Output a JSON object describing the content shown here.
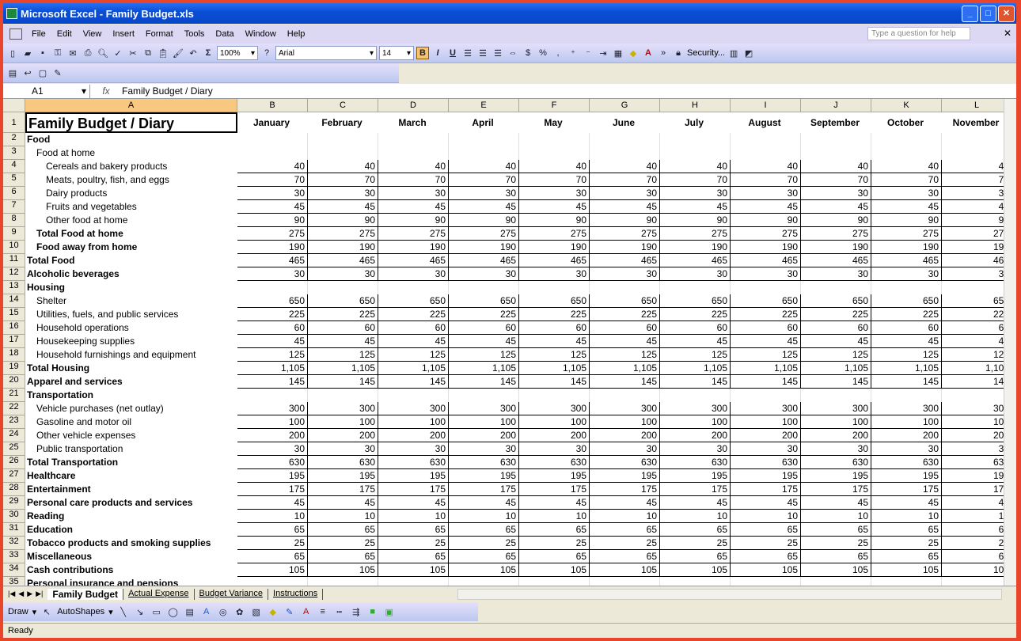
{
  "window": {
    "title": "Microsoft Excel - Family Budget.xls"
  },
  "menu": [
    "File",
    "Edit",
    "View",
    "Insert",
    "Format",
    "Tools",
    "Data",
    "Window",
    "Help"
  ],
  "ask_placeholder": "Type a question for help",
  "toolbar": {
    "zoom": "100%",
    "font": "Arial",
    "size": "14",
    "bold": "B",
    "italic": "I",
    "underline": "U",
    "security": "Security..."
  },
  "formula_bar": {
    "name_box": "A1",
    "fx": "fx",
    "content": "Family Budget / Diary"
  },
  "columns": [
    "A",
    "B",
    "C",
    "D",
    "E",
    "F",
    "G",
    "H",
    "I",
    "J",
    "K",
    "L"
  ],
  "title": "Family Budget / Diary",
  "months": [
    "January",
    "February",
    "March",
    "April",
    "May",
    "June",
    "July",
    "August",
    "September",
    "October",
    "November"
  ],
  "rows": [
    {
      "n": 2,
      "label": "Food",
      "bold": true,
      "indent": 0
    },
    {
      "n": 3,
      "label": "Food at home",
      "indent": 1
    },
    {
      "n": 4,
      "label": "Cereals and bakery products",
      "indent": 2,
      "v": "40"
    },
    {
      "n": 5,
      "label": "Meats, poultry, fish, and eggs",
      "indent": 2,
      "v": "70"
    },
    {
      "n": 6,
      "label": "Dairy products",
      "indent": 2,
      "v": "30"
    },
    {
      "n": 7,
      "label": "Fruits and vegetables",
      "indent": 2,
      "v": "45"
    },
    {
      "n": 8,
      "label": "Other food at home",
      "indent": 2,
      "v": "90"
    },
    {
      "n": 9,
      "label": "Total Food at home",
      "bold": true,
      "indent": 1,
      "v": "275"
    },
    {
      "n": 10,
      "label": "Food away from home",
      "bold": true,
      "indent": 1,
      "v": "190"
    },
    {
      "n": 11,
      "label": "Total Food",
      "bold": true,
      "indent": 0,
      "v": "465"
    },
    {
      "n": 12,
      "label": "Alcoholic beverages",
      "bold": true,
      "indent": 0,
      "v": "30"
    },
    {
      "n": 13,
      "label": "Housing",
      "bold": true,
      "indent": 0
    },
    {
      "n": 14,
      "label": "Shelter",
      "indent": 1,
      "v": "650"
    },
    {
      "n": 15,
      "label": "Utilities, fuels, and public services",
      "indent": 1,
      "v": "225"
    },
    {
      "n": 16,
      "label": "Household operations",
      "indent": 1,
      "v": "60"
    },
    {
      "n": 17,
      "label": "Housekeeping supplies",
      "indent": 1,
      "v": "45"
    },
    {
      "n": 18,
      "label": "Household furnishings and equipment",
      "indent": 1,
      "v": "125"
    },
    {
      "n": 19,
      "label": "Total Housing",
      "bold": true,
      "indent": 0,
      "v": "1,105"
    },
    {
      "n": 20,
      "label": "Apparel and services",
      "bold": true,
      "indent": 0,
      "v": "145"
    },
    {
      "n": 21,
      "label": "Transportation",
      "bold": true,
      "indent": 0
    },
    {
      "n": 22,
      "label": "Vehicle purchases (net outlay)",
      "indent": 1,
      "v": "300"
    },
    {
      "n": 23,
      "label": "Gasoline and motor oil",
      "indent": 1,
      "v": "100"
    },
    {
      "n": 24,
      "label": "Other vehicle expenses",
      "indent": 1,
      "v": "200"
    },
    {
      "n": 25,
      "label": "Public transportation",
      "indent": 1,
      "v": "30"
    },
    {
      "n": 26,
      "label": "Total Transportation",
      "bold": true,
      "indent": 0,
      "v": "630"
    },
    {
      "n": 27,
      "label": "Healthcare",
      "bold": true,
      "indent": 0,
      "v": "195"
    },
    {
      "n": 28,
      "label": "Entertainment",
      "bold": true,
      "indent": 0,
      "v": "175"
    },
    {
      "n": 29,
      "label": "Personal care products and services",
      "bold": true,
      "indent": 0,
      "v": "45"
    },
    {
      "n": 30,
      "label": "Reading",
      "bold": true,
      "indent": 0,
      "v": "10"
    },
    {
      "n": 31,
      "label": "Education",
      "bold": true,
      "indent": 0,
      "v": "65"
    },
    {
      "n": 32,
      "label": "Tobacco products and smoking supplies",
      "bold": true,
      "indent": 0,
      "v": "25"
    },
    {
      "n": 33,
      "label": "Miscellaneous",
      "bold": true,
      "indent": 0,
      "v": "65"
    },
    {
      "n": 34,
      "label": "Cash contributions",
      "bold": true,
      "indent": 0,
      "v": "105"
    },
    {
      "n": 35,
      "label": "Personal insurance and pensions",
      "bold": true,
      "indent": 0
    }
  ],
  "sheet_tabs": [
    "Family Budget",
    "Actual Expense",
    "Budget Variance",
    "Instructions"
  ],
  "active_tab": "Family Budget",
  "draw_toolbar": {
    "draw": "Draw",
    "autoshapes": "AutoShapes"
  },
  "status": "Ready"
}
